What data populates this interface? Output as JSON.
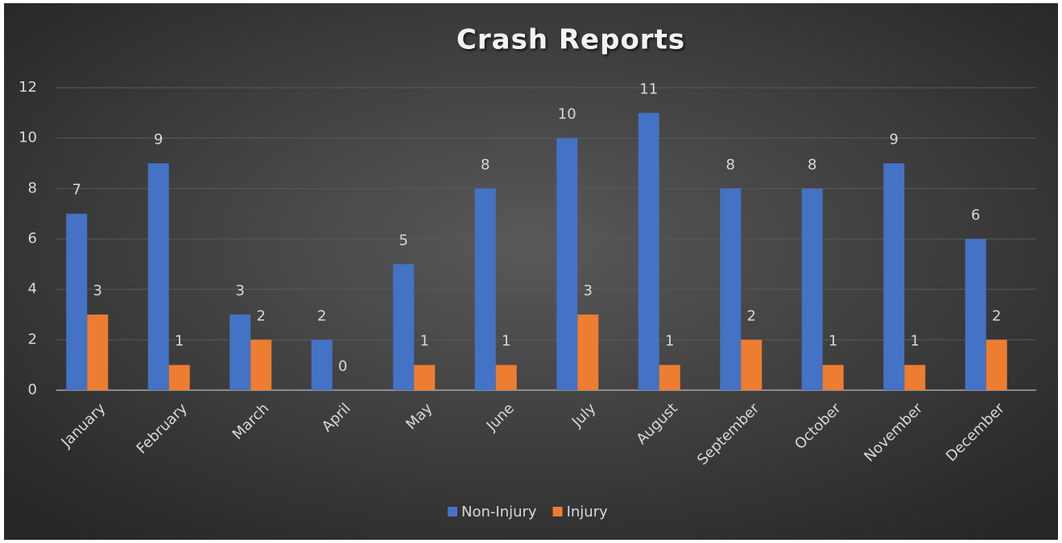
{
  "chart_data": {
    "type": "bar",
    "title": "Crash Reports",
    "categories": [
      "January",
      "February",
      "March",
      "April",
      "May",
      "June",
      "July",
      "August",
      "September",
      "October",
      "November",
      "December"
    ],
    "series": [
      {
        "name": "Non-Injury",
        "color": "#4472c4",
        "values": [
          7,
          9,
          3,
          2,
          5,
          8,
          10,
          11,
          8,
          8,
          9,
          6
        ]
      },
      {
        "name": "Injury",
        "color": "#ed7d31",
        "values": [
          3,
          1,
          2,
          0,
          1,
          1,
          3,
          1,
          2,
          1,
          1,
          2
        ]
      }
    ],
    "ylim": [
      0,
      12
    ],
    "yticks": [
      0,
      2,
      4,
      6,
      8,
      10,
      12
    ],
    "grid": true,
    "legend": "bottom"
  }
}
